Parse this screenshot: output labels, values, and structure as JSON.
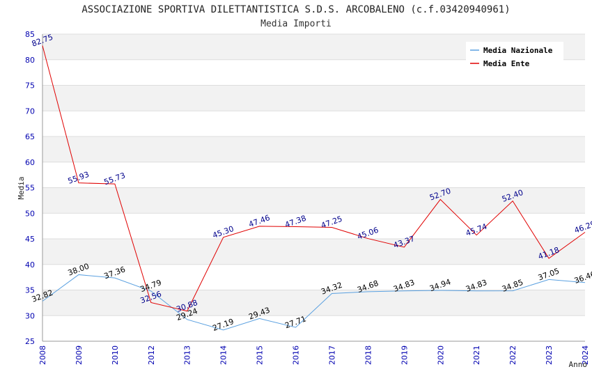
{
  "header": {
    "title": "ASSOCIAZIONE SPORTIVA DILETTANTISTICA S.D.S. ARCOBALENO (c.f.03420940961)",
    "subtitle": "Media Importi"
  },
  "chart_data": {
    "type": "line",
    "title": "ASSOCIAZIONE SPORTIVA DILETTANTISTICA S.D.S. ARCOBALENO (c.f.03420940961)",
    "subtitle": "Media Importi",
    "xlabel": "Anno",
    "ylabel": "Media",
    "ylim": [
      25,
      85
    ],
    "yticks": [
      25,
      30,
      35,
      40,
      45,
      50,
      55,
      60,
      65,
      70,
      75,
      80,
      85
    ],
    "categories": [
      "2008",
      "2009",
      "2010",
      "2012",
      "2013",
      "2014",
      "2015",
      "2016",
      "2017",
      "2018",
      "2019",
      "2020",
      "2021",
      "2022",
      "2023",
      "2024"
    ],
    "grid": true,
    "legend_position": "top-right",
    "series": [
      {
        "name": "Media Nazionale",
        "color": "#5aa0e0",
        "values": [
          32.82,
          38.0,
          37.36,
          34.79,
          29.24,
          27.19,
          29.43,
          27.71,
          34.32,
          34.68,
          34.83,
          34.94,
          34.83,
          34.85,
          37.05,
          36.46
        ],
        "labels": [
          "32.82",
          "38.00",
          "37.36",
          "34.79",
          "29.24",
          "27.19",
          "29.43",
          "27.71",
          "34.32",
          "34.68",
          "34.83",
          "34.94",
          "34.83",
          "34.85",
          "37.05",
          "36.46"
        ]
      },
      {
        "name": "Media Ente",
        "color": "#e00000",
        "values": [
          82.75,
          55.93,
          55.73,
          32.56,
          30.88,
          45.3,
          47.46,
          47.38,
          47.25,
          45.06,
          43.37,
          52.7,
          45.74,
          52.4,
          41.18,
          46.29
        ],
        "labels": [
          "82.75",
          "55.93",
          "55.73",
          "32.56",
          "30.88",
          "45.30",
          "47.46",
          "47.38",
          "47.25",
          "45.06",
          "43.37",
          "52.70",
          "45.74",
          "52.40",
          "41.18",
          "46.29"
        ]
      }
    ]
  }
}
